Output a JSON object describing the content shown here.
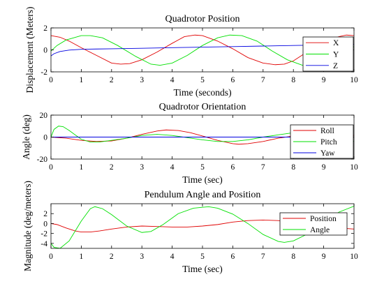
{
  "figure": {
    "background": "#ffffff"
  },
  "chart_data": [
    {
      "type": "line",
      "title": "Quadrotor Position",
      "xlabel": "Time (seconds)",
      "ylabel": "Displacement (Meters)",
      "xlim": [
        0,
        10
      ],
      "ylim": [
        -2,
        2
      ],
      "xticks": [
        "0",
        "1",
        "2",
        "3",
        "4",
        "5",
        "6",
        "7",
        "8",
        "9",
        "10"
      ],
      "yticks": [
        "-2",
        "0",
        "2"
      ],
      "legend_position": "right",
      "series": [
        {
          "name": "X",
          "color": "#e00000",
          "x": [
            0,
            0.3,
            0.6,
            1.0,
            1.5,
            2.0,
            2.3,
            2.6,
            3.0,
            3.5,
            4.0,
            4.4,
            4.75,
            5.0,
            5.5,
            6.0,
            6.5,
            7.0,
            7.4,
            7.7,
            8.0,
            8.5,
            9.0,
            9.5,
            9.75,
            10.0
          ],
          "y": [
            1.3,
            1.15,
            0.8,
            0.2,
            -0.5,
            -1.2,
            -1.3,
            -1.25,
            -0.9,
            -0.2,
            0.6,
            1.2,
            1.35,
            1.3,
            0.8,
            0.1,
            -0.7,
            -1.2,
            -1.35,
            -1.3,
            -1.0,
            -0.1,
            0.7,
            1.2,
            1.35,
            1.3
          ]
        },
        {
          "name": "Y",
          "color": "#00e000",
          "x": [
            0,
            0.2,
            0.5,
            1.0,
            1.3,
            1.7,
            2.2,
            2.8,
            3.3,
            3.6,
            4.0,
            4.5,
            5.0,
            5.5,
            5.9,
            6.3,
            6.8,
            7.3,
            7.8,
            8.3,
            8.75,
            9.2,
            9.6,
            10.0
          ],
          "y": [
            -0.1,
            0.4,
            0.9,
            1.3,
            1.3,
            1.1,
            0.4,
            -0.6,
            -1.3,
            -1.4,
            -1.2,
            -0.5,
            0.4,
            1.1,
            1.35,
            1.3,
            0.8,
            -0.1,
            -0.9,
            -1.4,
            -1.55,
            -1.2,
            -0.5,
            0.3
          ]
        },
        {
          "name": "Z",
          "color": "#0000e0",
          "x": [
            0,
            0.1,
            0.3,
            0.6,
            1.0,
            1.5,
            2.0,
            3.0,
            4.0,
            5.0,
            6.0,
            7.0,
            8.0,
            9.0,
            10.0
          ],
          "y": [
            -0.55,
            -0.35,
            -0.15,
            -0.02,
            0.05,
            0.08,
            0.1,
            0.15,
            0.2,
            0.25,
            0.3,
            0.35,
            0.4,
            0.45,
            0.5
          ]
        }
      ]
    },
    {
      "type": "line",
      "title": "Quadrotor Orientation",
      "xlabel": "Time (sec)",
      "ylabel": "Angle (deg)",
      "xlim": [
        0,
        10
      ],
      "ylim": [
        -20,
        20
      ],
      "xticks": [
        "0",
        "1",
        "2",
        "3",
        "4",
        "5",
        "6",
        "7",
        "8",
        "9",
        "10"
      ],
      "yticks": [
        "-20",
        "0",
        "20"
      ],
      "legend_position": "right",
      "series": [
        {
          "name": "Roll",
          "color": "#e00000",
          "x": [
            0,
            0.5,
            1.0,
            1.5,
            2.0,
            2.5,
            3.0,
            3.5,
            3.8,
            4.2,
            4.6,
            5.0,
            5.5,
            6.0,
            6.2,
            6.5,
            7.0,
            7.5,
            8.0,
            8.5,
            9.0,
            9.5,
            10.0
          ],
          "y": [
            0,
            -1,
            -3,
            -4,
            -3.5,
            -1,
            2.5,
            5.5,
            6.5,
            6,
            4,
            1,
            -3,
            -6,
            -6.5,
            -6,
            -4,
            -1,
            1,
            3,
            4.5,
            4,
            1.5
          ]
        },
        {
          "name": "Pitch",
          "color": "#00e000",
          "x": [
            0,
            0.1,
            0.25,
            0.4,
            0.6,
            0.8,
            1.0,
            1.3,
            1.6,
            2.0,
            2.5,
            3.0,
            3.5,
            4.0,
            4.5,
            5.0,
            5.5,
            6.0,
            6.5,
            7.0,
            7.5,
            8.0,
            8.5,
            9.0,
            9.3,
            9.6,
            10.0
          ],
          "y": [
            0,
            7,
            10,
            9.5,
            6,
            2,
            -2,
            -4.5,
            -4.5,
            -3,
            -1,
            1.5,
            2.5,
            1.5,
            -0.5,
            -2.5,
            -4,
            -4,
            -2.5,
            0,
            2,
            4,
            5,
            4.5,
            2,
            -1,
            -4
          ]
        },
        {
          "name": "Yaw",
          "color": "#0000e0",
          "x": [
            0,
            10
          ],
          "y": [
            0,
            0
          ]
        }
      ]
    },
    {
      "type": "line",
      "title": "Pendulum Angle and Position",
      "xlabel": "Time (sec)",
      "ylabel": "Magnitude (deg/meters)",
      "xlim": [
        0,
        10
      ],
      "ylim": [
        -5,
        4
      ],
      "xticks": [
        "0",
        "1",
        "2",
        "3",
        "4",
        "5",
        "6",
        "7",
        "8",
        "9",
        "10"
      ],
      "yticks": [
        "-4",
        "-2",
        "0",
        "2"
      ],
      "legend_position": "top-right",
      "series": [
        {
          "name": "Position",
          "color": "#e00000",
          "x": [
            0,
            0.2,
            0.5,
            0.8,
            1.0,
            1.3,
            1.6,
            2.0,
            2.5,
            3.0,
            3.5,
            4.0,
            4.5,
            5.0,
            5.5,
            6.0,
            6.5,
            7.0,
            7.5,
            8.0,
            8.5,
            9.0,
            9.5,
            10.0
          ],
          "y": [
            0,
            -0.2,
            -0.9,
            -1.5,
            -1.7,
            -1.7,
            -1.5,
            -1.1,
            -0.7,
            -0.5,
            -0.6,
            -0.7,
            -0.7,
            -0.5,
            -0.2,
            0.3,
            0.6,
            0.7,
            0.6,
            0.3,
            0,
            -0.4,
            -0.9,
            -1.1
          ]
        },
        {
          "name": "Angle",
          "color": "#00e000",
          "x": [
            0,
            0.1,
            0.3,
            0.6,
            1.0,
            1.3,
            1.45,
            1.7,
            2.0,
            2.5,
            3.0,
            3.3,
            3.7,
            4.2,
            4.7,
            5.2,
            5.5,
            6.0,
            6.5,
            7.0,
            7.5,
            7.7,
            8.0,
            8.5,
            9.0,
            9.5,
            10.0
          ],
          "y": [
            -4,
            -4.8,
            -5,
            -3.5,
            0.5,
            3,
            3.4,
            3,
            1.8,
            -0.5,
            -1.8,
            -1.6,
            -0.2,
            2,
            3.1,
            3.4,
            3.1,
            1.9,
            0,
            -2.2,
            -3.6,
            -3.8,
            -3.5,
            -2,
            0,
            2.3,
            3.5
          ]
        }
      ]
    }
  ]
}
